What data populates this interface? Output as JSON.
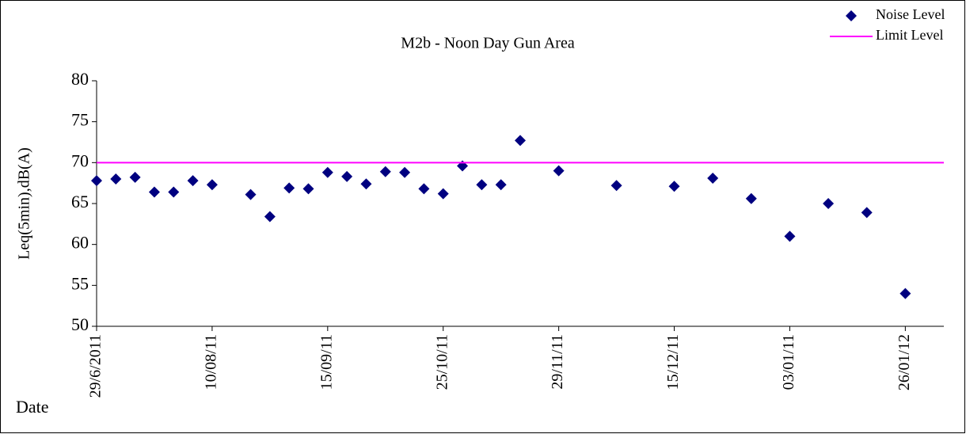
{
  "chart_data": {
    "type": "line",
    "title": "M2b - Noon Day Gun Area",
    "y_label": "Leq(5min),dB(A)",
    "x_label": "Date",
    "categories": [
      "29/6/2011",
      null,
      null,
      null,
      null,
      null,
      "10/08/11",
      null,
      null,
      null,
      null,
      null,
      "15/09/11",
      null,
      null,
      null,
      null,
      null,
      "25/10/11",
      null,
      null,
      null,
      null,
      null,
      "29/11/11",
      null,
      null,
      null,
      null,
      null,
      "15/12/11",
      null,
      null,
      null,
      null,
      null,
      "03/01/11",
      null,
      null,
      null,
      null,
      null,
      "26/01/12",
      null,
      null
    ],
    "series": [
      {
        "name": "Noise Level",
        "color": "#000080",
        "marker": "diamond",
        "line": false,
        "values": [
          67.8,
          68.0,
          68.2,
          66.4,
          66.4,
          67.8,
          67.3,
          null,
          66.1,
          63.4,
          66.9,
          66.8,
          68.8,
          68.3,
          67.4,
          68.9,
          68.8,
          66.8,
          66.2,
          69.6,
          67.3,
          67.3,
          72.7,
          null,
          69.0,
          null,
          null,
          67.2,
          null,
          null,
          67.1,
          null,
          68.1,
          null,
          65.6,
          null,
          61.0,
          null,
          65.0,
          null,
          63.9,
          null,
          54.0,
          null,
          null
        ]
      },
      {
        "name": "Limit Level",
        "color": "#ff00ff",
        "marker": "none",
        "line": true,
        "values": [
          70,
          70,
          70,
          70,
          70,
          70,
          70,
          70,
          70,
          70,
          70,
          70,
          70,
          70,
          70,
          70,
          70,
          70,
          70,
          70,
          70,
          70,
          70,
          70,
          70,
          70,
          70,
          70,
          70,
          70,
          70,
          70,
          70,
          70,
          70,
          70,
          70,
          70,
          70,
          70,
          70,
          70,
          70,
          70,
          70
        ]
      }
    ],
    "ylim": [
      50,
      80
    ],
    "yticks": [
      50,
      55,
      60,
      65,
      70,
      75,
      80
    ],
    "grid": false,
    "legend": "top-right"
  }
}
